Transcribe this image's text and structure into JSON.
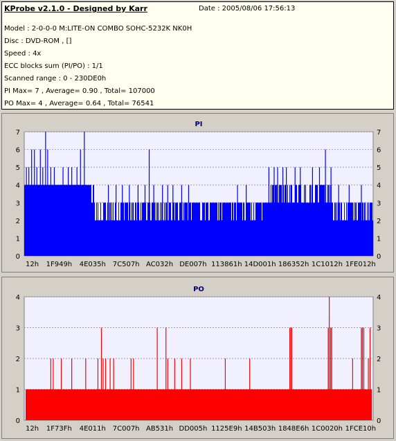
{
  "info": {
    "title": "KProbe v2.1.0 - Designed by Karr",
    "date": "Date : 2005/08/06 17:56:13",
    "lines": [
      "Model : 2-0-0-0 M:LITE-ON COMBO SOHC-5232K NK0H",
      "Disc : DVD-ROM ,  []",
      "Speed : 4x",
      "ECC blocks sum (PI/PO) : 1/1",
      "Scanned range : 0 - 230DE0h",
      "PI Max= 7 , Average= 0.90 , Total= 107000",
      "PO Max= 4 , Average= 0.64 , Total= 76541"
    ]
  },
  "colors": {
    "pi_bar": "#0000ff",
    "po_bar": "#ff0000",
    "title_text": "#000080",
    "plot_bg": "#f0f0ff",
    "grid": "#a0a0a0"
  },
  "chart_data": [
    {
      "type": "bar",
      "title": "PI",
      "xlabel": "",
      "ylabel": "",
      "ylim": [
        0,
        7
      ],
      "yticks": [
        0,
        1,
        2,
        3,
        4,
        5,
        6,
        7
      ],
      "xtick_labels": [
        "12h",
        "1F949h",
        "4E035h",
        "7C507h",
        "AC032h",
        "DE007h",
        "113861h",
        "14D001h",
        "186352h",
        "1C1012h",
        "1FE012h"
      ],
      "grid": true,
      "baseline_segments": [
        {
          "from": 0.0,
          "to": 0.09,
          "value": 4
        },
        {
          "from": 0.09,
          "to": 0.19,
          "value": 3
        },
        {
          "from": 0.19,
          "to": 0.21,
          "value": 4
        },
        {
          "from": 0.21,
          "to": 0.41,
          "value": 2
        },
        {
          "from": 0.41,
          "to": 0.47,
          "value": 3
        },
        {
          "from": 0.41,
          "to": 1.0,
          "value": 2
        }
      ],
      "envelope_segments": [
        {
          "from": 0.0,
          "to": 0.18,
          "value": 4
        },
        {
          "from": 0.18,
          "to": 0.7,
          "value": 3
        },
        {
          "from": 0.7,
          "to": 0.88,
          "value": 4
        },
        {
          "from": 0.88,
          "to": 1.0,
          "value": 3
        }
      ],
      "spikes": [
        {
          "x": 0.005,
          "value": 5
        },
        {
          "x": 0.012,
          "value": 5
        },
        {
          "x": 0.02,
          "value": 6
        },
        {
          "x": 0.028,
          "value": 6
        },
        {
          "x": 0.035,
          "value": 5
        },
        {
          "x": 0.045,
          "value": 6
        },
        {
          "x": 0.052,
          "value": 5
        },
        {
          "x": 0.06,
          "value": 7
        },
        {
          "x": 0.066,
          "value": 6
        },
        {
          "x": 0.075,
          "value": 5
        },
        {
          "x": 0.085,
          "value": 5
        },
        {
          "x": 0.11,
          "value": 5
        },
        {
          "x": 0.125,
          "value": 5
        },
        {
          "x": 0.135,
          "value": 5
        },
        {
          "x": 0.15,
          "value": 5
        },
        {
          "x": 0.16,
          "value": 6
        },
        {
          "x": 0.171,
          "value": 7
        },
        {
          "x": 0.19,
          "value": 4
        },
        {
          "x": 0.24,
          "value": 4
        },
        {
          "x": 0.262,
          "value": 4
        },
        {
          "x": 0.28,
          "value": 4
        },
        {
          "x": 0.3,
          "value": 4
        },
        {
          "x": 0.325,
          "value": 4
        },
        {
          "x": 0.345,
          "value": 4
        },
        {
          "x": 0.357,
          "value": 6
        },
        {
          "x": 0.37,
          "value": 4
        },
        {
          "x": 0.395,
          "value": 4
        },
        {
          "x": 0.41,
          "value": 4
        },
        {
          "x": 0.425,
          "value": 4
        },
        {
          "x": 0.45,
          "value": 4
        },
        {
          "x": 0.47,
          "value": 4
        },
        {
          "x": 0.61,
          "value": 4
        },
        {
          "x": 0.635,
          "value": 4
        },
        {
          "x": 0.7,
          "value": 5
        },
        {
          "x": 0.715,
          "value": 5
        },
        {
          "x": 0.725,
          "value": 5
        },
        {
          "x": 0.74,
          "value": 5
        },
        {
          "x": 0.75,
          "value": 5
        },
        {
          "x": 0.76,
          "value": 4
        },
        {
          "x": 0.775,
          "value": 5
        },
        {
          "x": 0.79,
          "value": 5
        },
        {
          "x": 0.805,
          "value": 4
        },
        {
          "x": 0.825,
          "value": 5
        },
        {
          "x": 0.845,
          "value": 5
        },
        {
          "x": 0.862,
          "value": 6
        },
        {
          "x": 0.878,
          "value": 5
        },
        {
          "x": 0.9,
          "value": 4
        },
        {
          "x": 0.93,
          "value": 4
        },
        {
          "x": 0.965,
          "value": 4
        }
      ],
      "dips": [
        {
          "x": 0.22,
          "value": 2
        },
        {
          "x": 0.3,
          "value": 1
        },
        {
          "x": 0.44,
          "value": 2
        },
        {
          "x": 0.52,
          "value": 2
        },
        {
          "x": 0.6,
          "value": 2
        },
        {
          "x": 0.67,
          "value": 2
        },
        {
          "x": 0.8,
          "value": 2
        },
        {
          "x": 0.95,
          "value": 2
        },
        {
          "x": 0.985,
          "value": 2
        }
      ]
    },
    {
      "type": "bar",
      "title": "PO",
      "xlabel": "",
      "ylabel": "",
      "ylim": [
        0,
        4
      ],
      "yticks": [
        0,
        1,
        2,
        3,
        4
      ],
      "xtick_labels": [
        "12h",
        "1F73Fh",
        "4E011h",
        "7C007h",
        "AB531h",
        "DD005h",
        "1125E9h",
        "14B503h",
        "1848E6h",
        "1C0020h",
        "1FCE10h"
      ],
      "grid": true,
      "base_value": 1,
      "spikes": [
        {
          "x": 0.075,
          "value": 2
        },
        {
          "x": 0.082,
          "value": 2
        },
        {
          "x": 0.105,
          "value": 2
        },
        {
          "x": 0.135,
          "value": 2
        },
        {
          "x": 0.175,
          "value": 2
        },
        {
          "x": 0.21,
          "value": 2
        },
        {
          "x": 0.225,
          "value": 2
        },
        {
          "x": 0.232,
          "value": 2
        },
        {
          "x": 0.22,
          "value": 3
        },
        {
          "x": 0.245,
          "value": 2
        },
        {
          "x": 0.255,
          "value": 2
        },
        {
          "x": 0.305,
          "value": 2
        },
        {
          "x": 0.312,
          "value": 2
        },
        {
          "x": 0.38,
          "value": 3
        },
        {
          "x": 0.405,
          "value": 3
        },
        {
          "x": 0.41,
          "value": 2
        },
        {
          "x": 0.43,
          "value": 2
        },
        {
          "x": 0.45,
          "value": 2
        },
        {
          "x": 0.475,
          "value": 2
        },
        {
          "x": 0.575,
          "value": 2
        },
        {
          "x": 0.645,
          "value": 2
        },
        {
          "x": 0.76,
          "value": 3
        },
        {
          "x": 0.763,
          "value": 3
        },
        {
          "x": 0.766,
          "value": 3
        },
        {
          "x": 0.87,
          "value": 3
        },
        {
          "x": 0.873,
          "value": 4
        },
        {
          "x": 0.877,
          "value": 3
        },
        {
          "x": 0.88,
          "value": 3
        },
        {
          "x": 0.94,
          "value": 2
        },
        {
          "x": 0.965,
          "value": 3
        },
        {
          "x": 0.968,
          "value": 3
        },
        {
          "x": 0.972,
          "value": 3
        },
        {
          "x": 0.985,
          "value": 2
        },
        {
          "x": 0.99,
          "value": 3
        }
      ]
    }
  ]
}
